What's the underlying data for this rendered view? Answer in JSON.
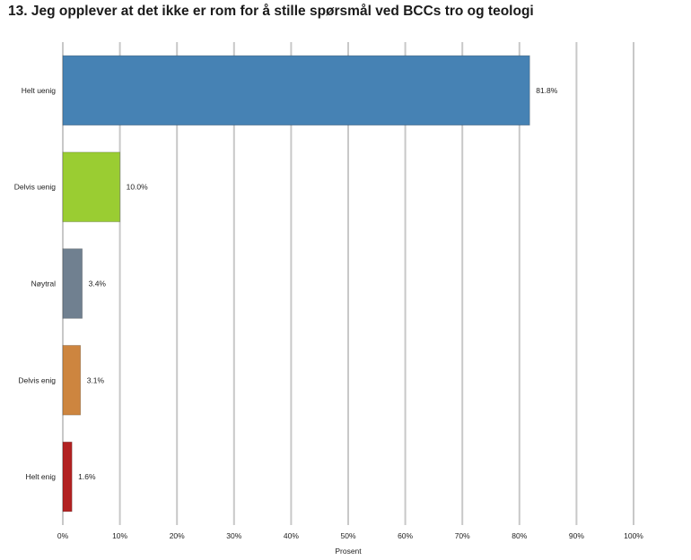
{
  "chart_data": {
    "type": "bar",
    "orientation": "horizontal",
    "title": "13. Jeg opplever at det ikke er rom for å stille spørsmål ved BCCs tro og teologi",
    "xlabel": "Prosent",
    "ylabel": "",
    "xlim": [
      0,
      100
    ],
    "x_ticks": [
      "0%",
      "10%",
      "20%",
      "30%",
      "40%",
      "50%",
      "60%",
      "70%",
      "80%",
      "90%",
      "100%"
    ],
    "grid": true,
    "categories": [
      "Helt uenig",
      "Delvis uenig",
      "Nøytral",
      "Delvis enig",
      "Helt enig"
    ],
    "values": [
      81.8,
      10.0,
      3.4,
      3.1,
      1.6
    ],
    "value_labels": [
      "81.8%",
      "10.0%",
      "3.4%",
      "3.1%",
      "1.6%"
    ],
    "colors": [
      "#4682b4",
      "#9acd32",
      "#708090",
      "#cd853f",
      "#b22222"
    ]
  }
}
